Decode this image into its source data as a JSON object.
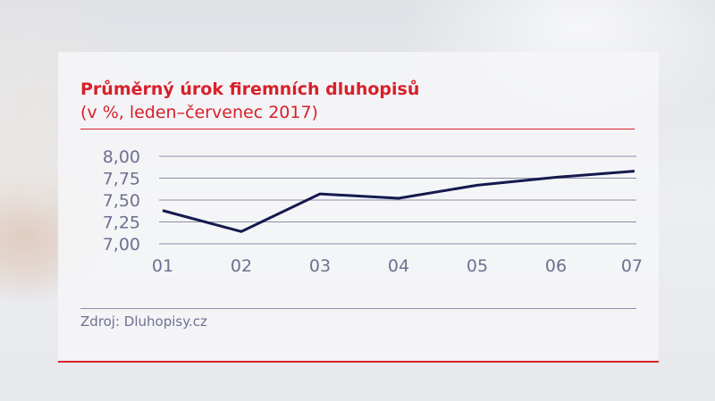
{
  "chart_data": {
    "type": "line",
    "title": "Průměrný úrok firemních dluhopisů",
    "subtitle": "(v %, leden–červenec 2017)",
    "categories": [
      "01",
      "02",
      "03",
      "04",
      "05",
      "06",
      "07"
    ],
    "values": [
      7.38,
      7.14,
      7.57,
      7.52,
      7.67,
      7.76,
      7.83
    ],
    "yticks": [
      "7,00",
      "7,25",
      "7,50",
      "7,75",
      "8,00"
    ],
    "ylim": [
      7.0,
      8.0
    ],
    "grid": true,
    "line_color": "#141a4e",
    "tick_color": "#6e7090"
  },
  "source": "Zdroj: Dluhopisy.cz",
  "accent": "#d8202a"
}
